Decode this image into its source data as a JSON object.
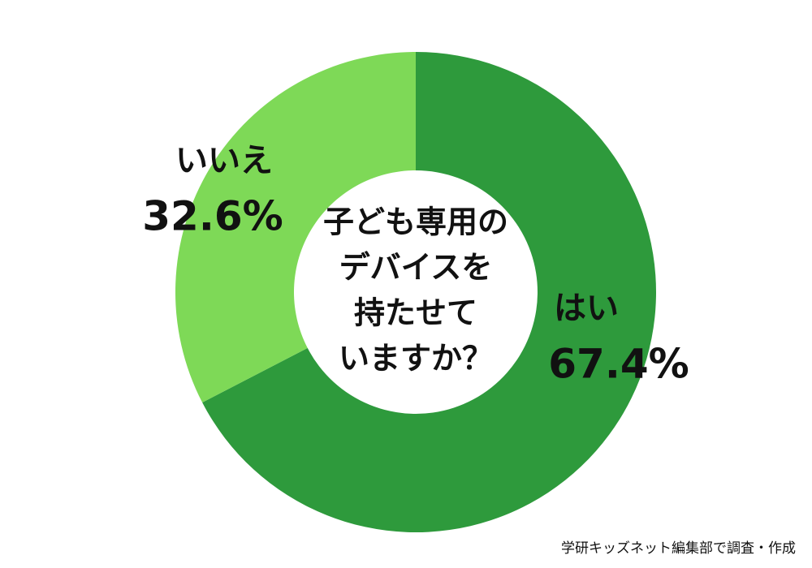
{
  "chart_data": {
    "type": "donut",
    "center_text": [
      "子ども専用の",
      "デバイスを",
      "持たせて",
      "いますか？"
    ],
    "categories": [
      "はい",
      "いいえ"
    ],
    "values": [
      67.4,
      32.6
    ],
    "value_labels": [
      "67.4%",
      "32.6%"
    ],
    "colors": [
      "#2e9a3c",
      "#7ed957"
    ],
    "source": "学研キッズネット編集部で調査・作成"
  }
}
